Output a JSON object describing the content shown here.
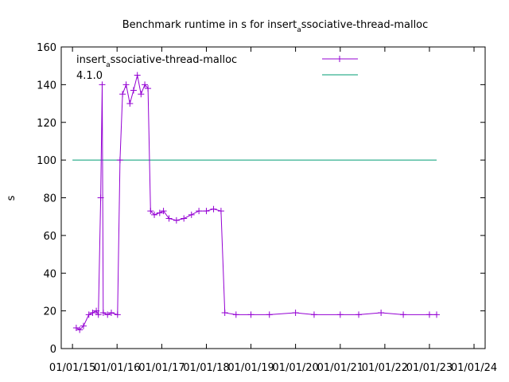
{
  "chart_data": {
    "type": "line",
    "title_main": "Benchmark runtime in s for insert",
    "title_sub": "a",
    "title_rest": "ssociative-thread-malloc",
    "ylabel": "s",
    "xlabel": "",
    "ylim": [
      0,
      160
    ],
    "y_ticks": [
      0,
      20,
      40,
      60,
      80,
      100,
      120,
      140,
      160
    ],
    "x_ticks": [
      "01/01/15",
      "01/01/16",
      "01/01/17",
      "01/01/18",
      "01/01/19",
      "01/01/20",
      "01/01/21",
      "01/01/22",
      "01/01/23",
      "01/01/24"
    ],
    "grid": false,
    "legend_position": "top-right",
    "colors": {
      "series": "#9400d3",
      "reference": "#009e73"
    },
    "series": [
      {
        "name_main": "insert",
        "name_sub": "a",
        "name_rest": "ssociative-thread-malloc",
        "version": "4.1.0",
        "points": [
          [
            "2015-02-01",
            11
          ],
          [
            "2015-03-01",
            10
          ],
          [
            "2015-04-01",
            12
          ],
          [
            "2015-05-15",
            18
          ],
          [
            "2015-06-15",
            19
          ],
          [
            "2015-07-15",
            20
          ],
          [
            "2015-08-01",
            18
          ],
          [
            "2015-08-20",
            80
          ],
          [
            "2015-09-01",
            140
          ],
          [
            "2015-09-10",
            19
          ],
          [
            "2015-10-15",
            18
          ],
          [
            "2015-11-15",
            19
          ],
          [
            "2016-01-05",
            18
          ],
          [
            "2016-01-25",
            100
          ],
          [
            "2016-02-15",
            135
          ],
          [
            "2016-03-15",
            140
          ],
          [
            "2016-04-15",
            130
          ],
          [
            "2016-05-15",
            137
          ],
          [
            "2016-06-15",
            145
          ],
          [
            "2016-07-15",
            135
          ],
          [
            "2016-08-15",
            140
          ],
          [
            "2016-09-10",
            138
          ],
          [
            "2016-10-01",
            73
          ],
          [
            "2016-11-01",
            71
          ],
          [
            "2016-12-15",
            72
          ],
          [
            "2017-01-15",
            73
          ],
          [
            "2017-03-01",
            69
          ],
          [
            "2017-05-01",
            68
          ],
          [
            "2017-07-01",
            69
          ],
          [
            "2017-09-01",
            71
          ],
          [
            "2017-11-01",
            73
          ],
          [
            "2018-01-01",
            73
          ],
          [
            "2018-03-01",
            74
          ],
          [
            "2018-05-01",
            73
          ],
          [
            "2018-06-01",
            19
          ],
          [
            "2018-09-01",
            18
          ],
          [
            "2019-01-01",
            18
          ],
          [
            "2019-06-01",
            18
          ],
          [
            "2020-01-01",
            19
          ],
          [
            "2020-06-01",
            18
          ],
          [
            "2021-01-01",
            18
          ],
          [
            "2021-06-01",
            18
          ],
          [
            "2021-12-01",
            19
          ],
          [
            "2022-06-01",
            18
          ],
          [
            "2023-01-01",
            18
          ],
          [
            "2023-03-01",
            18
          ]
        ]
      },
      {
        "name": "",
        "constant": 100,
        "x_range": [
          "2015-01-01",
          "2023-03-01"
        ]
      }
    ]
  }
}
